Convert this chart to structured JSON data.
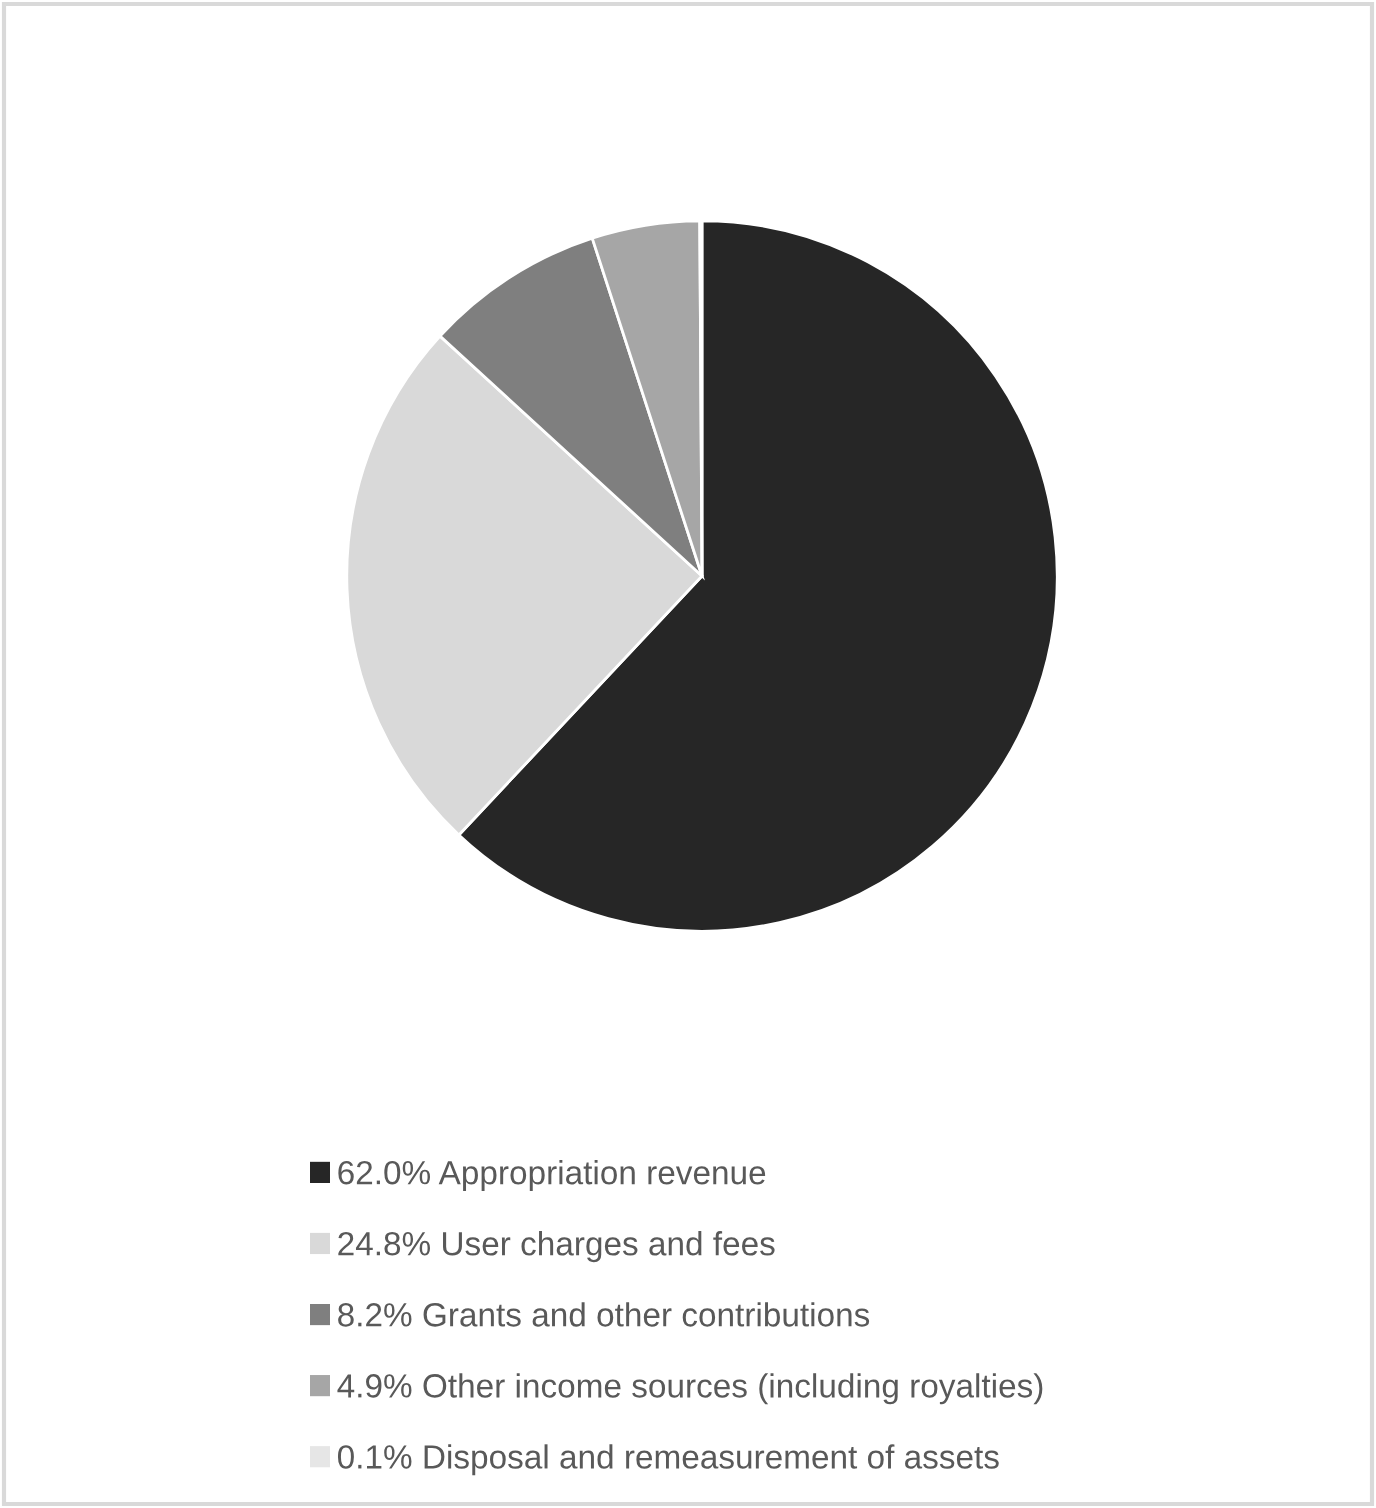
{
  "chart_data": {
    "type": "pie",
    "categories": [
      "62.0% Appropriation revenue",
      "24.8% User charges and fees",
      "8.2% Grants and other contributions",
      "4.9% Other income sources (including royalties)",
      "0.1% Disposal and remeasurement of assets"
    ],
    "values": [
      62.0,
      24.8,
      8.2,
      4.9,
      0.1
    ],
    "colors": [
      "#262626",
      "#d9d9d9",
      "#7f7f7f",
      "#a6a6a6",
      "#e6e6e6"
    ],
    "legend": "bottom"
  }
}
